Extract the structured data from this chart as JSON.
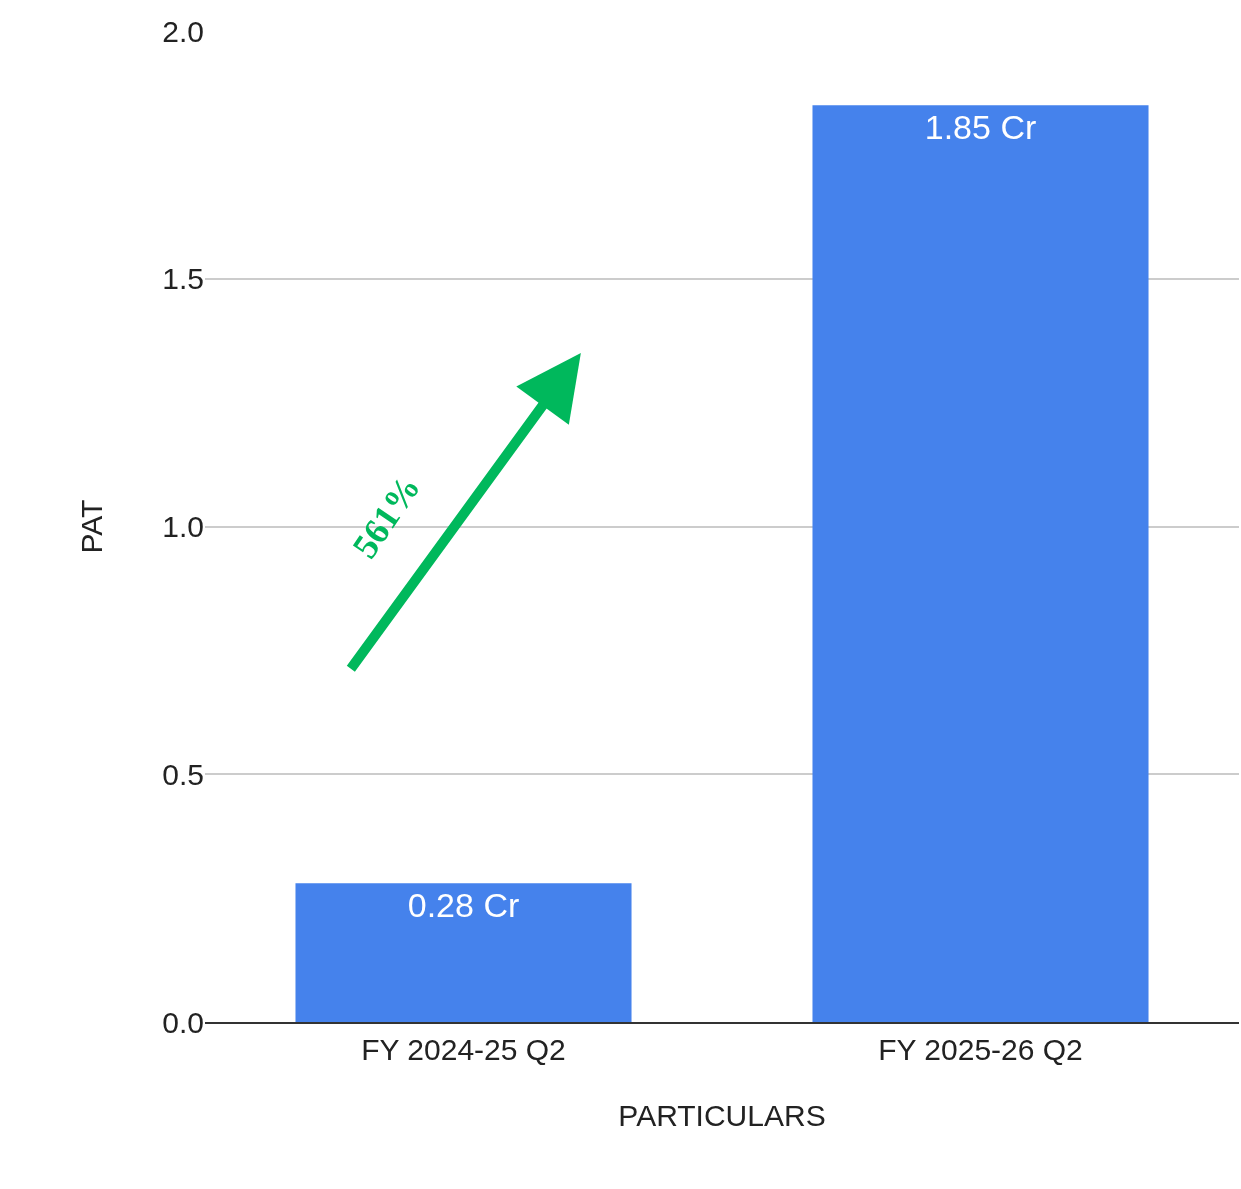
{
  "chart_data": {
    "type": "bar",
    "xlabel": "PARTICULARS",
    "ylabel": "PAT",
    "categories": [
      "FY 2024-25 Q2",
      "FY 2025-26 Q2"
    ],
    "values": [
      0.28,
      1.85
    ],
    "value_labels": [
      "0.28 Cr",
      "1.85 Cr"
    ],
    "color": "#4582ec",
    "ylim": [
      0,
      2.0
    ],
    "yticks": [
      {
        "value": 0,
        "label": "0.0"
      },
      {
        "value": 0.5,
        "label": "0.5"
      },
      {
        "value": 1.0,
        "label": "1.0"
      },
      {
        "value": 1.5,
        "label": "1.5"
      },
      {
        "value": 2.0,
        "label": "2.0"
      }
    ],
    "grid": "y",
    "legend": false,
    "annotations": [
      "561%"
    ]
  }
}
